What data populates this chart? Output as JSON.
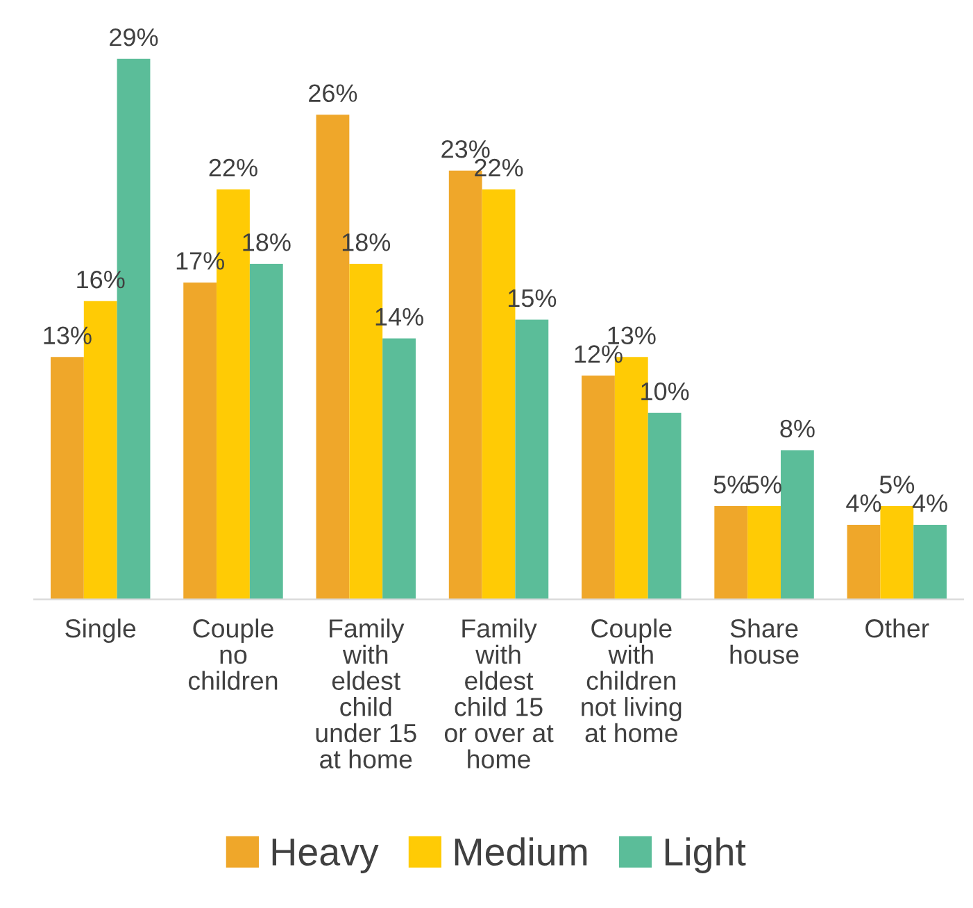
{
  "chart_data": {
    "type": "bar",
    "categories": [
      "Single",
      "Couple\nno\nchildren",
      "Family\nwith\neldest\nchild\nunder 15\nat home",
      "Family\nwith\neldest\nchild 15\nor over at\nhome",
      "Couple\nwith\nchildren\nnot living\nat home",
      "Share\nhouse",
      "Other"
    ],
    "series": [
      {
        "name": "Heavy",
        "color": "#efa72a",
        "values": [
          13,
          17,
          26,
          23,
          12,
          5,
          4
        ],
        "value_labels": [
          "13%",
          "17%",
          "26%",
          "23%",
          "12%",
          "5%",
          "4%"
        ]
      },
      {
        "name": "Medium",
        "color": "#ffcb05",
        "values": [
          16,
          22,
          18,
          22,
          13,
          5,
          5
        ],
        "value_labels": [
          "16%",
          "22%",
          "18%",
          "22%",
          "13%",
          "5%",
          "5%"
        ]
      },
      {
        "name": "Light",
        "color": "#5bbd99",
        "values": [
          29,
          18,
          14,
          15,
          10,
          8,
          4
        ],
        "value_labels": [
          "29%",
          "18%",
          "14%",
          "15%",
          "10%",
          "8%",
          "4%"
        ]
      }
    ],
    "legend": "bottom",
    "grid": false
  }
}
